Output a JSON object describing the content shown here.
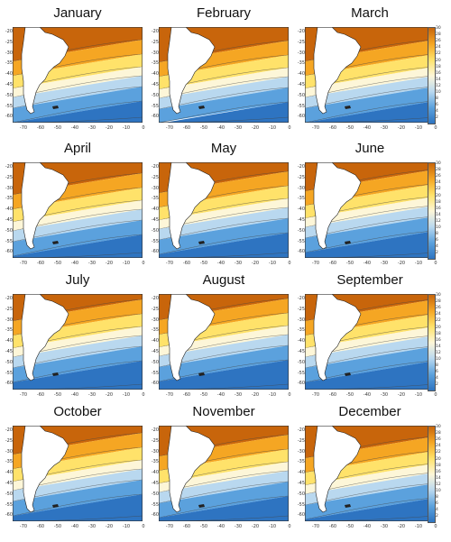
{
  "months": [
    "January",
    "February",
    "March",
    "April",
    "May",
    "June",
    "July",
    "August",
    "September",
    "October",
    "November",
    "December"
  ],
  "y_ticks": [
    "-20",
    "-25",
    "-30",
    "-35",
    "-40",
    "-45",
    "-50",
    "-55",
    "-60"
  ],
  "x_ticks": [
    "-70",
    "-60",
    "-50",
    "-40",
    "-30",
    "-20",
    "-10",
    "0"
  ],
  "colorbar_ticks": [
    "30",
    "28",
    "26",
    "24",
    "22",
    "20",
    "18",
    "16",
    "14",
    "12",
    "10",
    "8",
    "6",
    "4",
    "2"
  ],
  "colors": {
    "warm_dark": "#c8650b",
    "warm": "#f5a623",
    "yellow": "#ffe26a",
    "pale": "#fdf6d8",
    "cool_light": "#b9d8ef",
    "cool": "#5ba1dd",
    "cool_dark": "#2e74c1",
    "land": "#ffffff"
  }
}
